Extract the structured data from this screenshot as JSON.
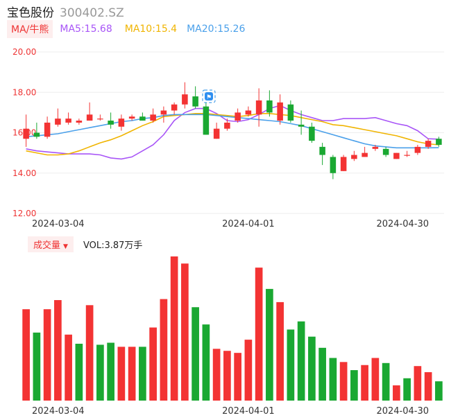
{
  "header": {
    "name": "宝色股份",
    "code": "300402.SZ"
  },
  "ma_legend": {
    "tag": "MA/牛熊",
    "ma5": "MA5:15.68",
    "ma10": "MA10:15.4",
    "ma20": "MA20:15.26"
  },
  "volume_legend": {
    "tag": "成交量",
    "caret": "▼",
    "value": "VOL:3.87万手"
  },
  "colors": {
    "up": "#f33333",
    "down": "#1aa832",
    "ma5": "#a855f7",
    "ma10": "#f0b400",
    "ma20": "#4aa0ea",
    "axis": "#e33333"
  },
  "chart_data": [
    {
      "type": "candlestick",
      "yticks": [
        "20.00",
        "18.00",
        "16.00",
        "14.00",
        "12.00"
      ],
      "ylim": [
        12,
        20
      ],
      "x_tick_labels": [
        "2024-03-04",
        "2024-04-01",
        "2024-04-30"
      ],
      "candles": [
        {
          "o": 15.7,
          "c": 16.2,
          "h": 16.9,
          "l": 15.3
        },
        {
          "o": 16.0,
          "c": 15.8,
          "h": 16.5,
          "l": 15.7
        },
        {
          "o": 15.8,
          "c": 16.5,
          "h": 16.8,
          "l": 15.7
        },
        {
          "o": 16.4,
          "c": 16.7,
          "h": 17.2,
          "l": 16.3
        },
        {
          "o": 16.5,
          "c": 16.7,
          "h": 17.0,
          "l": 16.4
        },
        {
          "o": 16.5,
          "c": 16.6,
          "h": 16.7,
          "l": 16.4
        },
        {
          "o": 16.6,
          "c": 16.9,
          "h": 17.5,
          "l": 16.6
        },
        {
          "o": 16.7,
          "c": 16.7,
          "h": 16.9,
          "l": 16.6
        },
        {
          "o": 16.6,
          "c": 16.4,
          "h": 17.0,
          "l": 16.2
        },
        {
          "o": 16.3,
          "c": 16.7,
          "h": 16.9,
          "l": 16.1
        },
        {
          "o": 16.7,
          "c": 16.8,
          "h": 16.9,
          "l": 16.6
        },
        {
          "o": 16.8,
          "c": 16.6,
          "h": 17.0,
          "l": 16.6
        },
        {
          "o": 16.6,
          "c": 16.9,
          "h": 17.2,
          "l": 16.5
        },
        {
          "o": 16.9,
          "c": 17.1,
          "h": 17.3,
          "l": 16.5
        },
        {
          "o": 17.1,
          "c": 17.4,
          "h": 17.5,
          "l": 16.9
        },
        {
          "o": 17.4,
          "c": 17.9,
          "h": 18.5,
          "l": 17.2
        },
        {
          "o": 17.8,
          "c": 17.3,
          "h": 18.3,
          "l": 17.2
        },
        {
          "o": 17.3,
          "c": 15.9,
          "h": 17.5,
          "l": 15.9
        },
        {
          "o": 15.7,
          "c": 16.2,
          "h": 16.5,
          "l": 15.7
        },
        {
          "o": 16.2,
          "c": 16.5,
          "h": 16.7,
          "l": 16.1
        },
        {
          "o": 16.6,
          "c": 17.0,
          "h": 17.2,
          "l": 16.5
        },
        {
          "o": 16.9,
          "c": 17.1,
          "h": 17.3,
          "l": 16.8
        },
        {
          "o": 16.9,
          "c": 17.6,
          "h": 18.2,
          "l": 16.3
        },
        {
          "o": 17.6,
          "c": 17.0,
          "h": 18.1,
          "l": 16.8
        },
        {
          "o": 16.6,
          "c": 17.5,
          "h": 17.9,
          "l": 16.4
        },
        {
          "o": 17.4,
          "c": 16.6,
          "h": 17.6,
          "l": 16.5
        },
        {
          "o": 16.4,
          "c": 16.3,
          "h": 17.1,
          "l": 15.9
        },
        {
          "o": 16.3,
          "c": 15.6,
          "h": 16.5,
          "l": 15.5
        },
        {
          "o": 15.3,
          "c": 14.9,
          "h": 15.5,
          "l": 14.4
        },
        {
          "o": 14.8,
          "c": 14.0,
          "h": 14.9,
          "l": 13.7
        },
        {
          "o": 14.1,
          "c": 14.8,
          "h": 14.9,
          "l": 14.1
        },
        {
          "o": 14.7,
          "c": 14.9,
          "h": 15.1,
          "l": 14.6
        },
        {
          "o": 14.8,
          "c": 15.0,
          "h": 15.3,
          "l": 14.8
        },
        {
          "o": 15.2,
          "c": 15.3,
          "h": 15.4,
          "l": 15.1
        },
        {
          "o": 15.2,
          "c": 14.9,
          "h": 15.3,
          "l": 14.8
        },
        {
          "o": 14.7,
          "c": 15.0,
          "h": 15.0,
          "l": 14.7
        },
        {
          "o": 14.9,
          "c": 14.9,
          "h": 15.1,
          "l": 14.8
        },
        {
          "o": 15.0,
          "c": 15.3,
          "h": 15.4,
          "l": 14.9
        },
        {
          "o": 15.3,
          "c": 15.6,
          "h": 15.7,
          "l": 15.2
        },
        {
          "o": 15.7,
          "c": 15.4,
          "h": 15.8,
          "l": 15.3
        }
      ],
      "series": [
        {
          "name": "MA5",
          "values": [
            15.2,
            15.1,
            15.05,
            15.0,
            14.95,
            14.95,
            14.95,
            14.9,
            14.75,
            14.7,
            14.8,
            15.1,
            15.4,
            15.9,
            16.6,
            17.0,
            17.2,
            17.2,
            16.95,
            16.6,
            16.55,
            16.65,
            16.9,
            17.2,
            17.35,
            17.1,
            16.9,
            16.75,
            16.6,
            16.6,
            16.7,
            16.7,
            16.7,
            16.75,
            16.6,
            16.45,
            16.35,
            16.1,
            15.7,
            15.68
          ]
        },
        {
          "name": "MA10",
          "values": [
            15.1,
            15.0,
            14.9,
            14.9,
            14.95,
            15.1,
            15.3,
            15.5,
            15.65,
            15.85,
            16.1,
            16.35,
            16.55,
            16.8,
            16.85,
            16.9,
            16.95,
            16.95,
            16.9,
            16.85,
            16.8,
            16.85,
            16.95,
            16.95,
            16.9,
            16.85,
            16.75,
            16.65,
            16.55,
            16.4,
            16.35,
            16.25,
            16.15,
            16.05,
            15.95,
            15.85,
            15.7,
            15.55,
            15.45,
            15.4
          ]
        },
        {
          "name": "MA20",
          "values": [
            15.8,
            15.85,
            15.9,
            15.95,
            16.05,
            16.15,
            16.25,
            16.35,
            16.45,
            16.55,
            16.6,
            16.7,
            16.75,
            16.85,
            16.9,
            16.9,
            16.9,
            16.9,
            16.85,
            16.8,
            16.75,
            16.7,
            16.65,
            16.6,
            16.55,
            16.45,
            16.35,
            16.2,
            16.05,
            15.9,
            15.75,
            15.6,
            15.45,
            15.35,
            15.3,
            15.25,
            15.25,
            15.25,
            15.25,
            15.26
          ]
        }
      ]
    },
    {
      "type": "bar",
      "x_tick_labels": [
        "2024-03-04",
        "2024-04-01",
        "2024-04-30"
      ],
      "values": [
        4.5,
        3.35,
        4.5,
        4.95,
        3.25,
        2.8,
        4.7,
        2.75,
        2.85,
        2.65,
        2.65,
        2.65,
        3.6,
        5.0,
        7.1,
        6.75,
        4.6,
        3.75,
        2.55,
        2.45,
        2.35,
        3.0,
        6.55,
        5.5,
        4.85,
        3.5,
        3.9,
        3.15,
        2.6,
        2.1,
        1.9,
        1.5,
        1.75,
        2.1,
        1.85,
        0.75,
        1.1,
        1.7,
        1.4,
        0.95
      ],
      "colors": [
        "up",
        "down",
        "up",
        "up",
        "up",
        "down",
        "up",
        "down",
        "down",
        "up",
        "up",
        "down",
        "up",
        "up",
        "up",
        "up",
        "down",
        "down",
        "up",
        "up",
        "up",
        "up",
        "up",
        "down",
        "up",
        "down",
        "down",
        "down",
        "down",
        "down",
        "up",
        "down",
        "up",
        "up",
        "down",
        "up",
        "down",
        "up",
        "up",
        "down"
      ]
    }
  ]
}
